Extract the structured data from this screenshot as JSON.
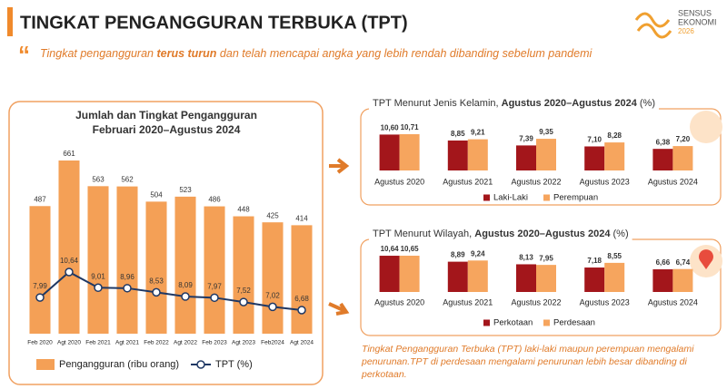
{
  "header": {
    "title": "TINGKAT PENGANGGURAN TERBUKA (TPT)",
    "quote": [
      "Tingkat pengangguran ",
      "terus turun",
      " dan telah mencapai angka yang lebih rendah dibanding sebelum pandemi"
    ]
  },
  "logo": [
    "SENSUS",
    "EKONOMI",
    "2026"
  ],
  "chart_data": [
    {
      "type": "bar",
      "title": [
        "Jumlah dan Tingkat Pengangguran",
        "Februari 2020–Agustus 2024"
      ],
      "categories": [
        "Feb 2020",
        "Agt 2020",
        "Feb 2021",
        "Agt 2021",
        "Feb 2022",
        "Agt 2022",
        "Feb 2023",
        "Agt 2023",
        "Feb2024",
        "Agt 2024"
      ],
      "series": [
        {
          "name": "Pengangguran (ribu orang)",
          "color": "#f4a056",
          "values": [
            487,
            661,
            563,
            562,
            504,
            523,
            486,
            448,
            425,
            414
          ]
        },
        {
          "name": "TPT (%)",
          "type": "line",
          "axis": "y2",
          "color": "#1f3864",
          "values": [
            7.99,
            10.64,
            9.01,
            8.96,
            8.53,
            8.09,
            7.97,
            7.52,
            7.02,
            6.68
          ],
          "value_labels": [
            "7,99",
            "10,64",
            "9,01",
            "8,96",
            "8,53",
            "8,09",
            "7,97",
            "7,52",
            "7,02",
            "6,68"
          ]
        }
      ]
    },
    {
      "type": "bar",
      "title": [
        "TPT Menurut Jenis Kelamin, ",
        "Agustus 2020–Agustus 2024",
        " (%)"
      ],
      "categories": [
        "Agustus 2020",
        "Agustus 2021",
        "Agustus 2022",
        "Agustus 2023",
        "Agustus 2024"
      ],
      "series": [
        {
          "name": "Laki-Laki",
          "color": "#a3161b",
          "values": [
            10.6,
            8.85,
            7.39,
            7.1,
            6.38
          ],
          "value_labels": [
            "10,60",
            "8,85",
            "7,39",
            "7,10",
            "6,38"
          ]
        },
        {
          "name": "Perempuan",
          "color": "#f6a55e",
          "values": [
            10.71,
            9.21,
            9.35,
            8.28,
            7.2
          ],
          "value_labels": [
            "10,71",
            "9,21",
            "9,35",
            "8,28",
            "7,20"
          ]
        }
      ]
    },
    {
      "type": "bar",
      "title": [
        "TPT Menurut Wilayah, ",
        "Agustus 2020–Agustus 2024",
        " (%)"
      ],
      "categories": [
        "Agustus 2020",
        "Agustus 2021",
        "Agustus 2022",
        "Agustus 2023",
        "Agustus 2024"
      ],
      "series": [
        {
          "name": "Perkotaan",
          "color": "#a3161b",
          "values": [
            10.64,
            8.89,
            8.13,
            7.18,
            6.66
          ],
          "value_labels": [
            "10,64",
            "8,89",
            "8,13",
            "7,18",
            "6,66"
          ]
        },
        {
          "name": "Perdesaan",
          "color": "#f6a55e",
          "values": [
            10.65,
            9.24,
            7.95,
            8.55,
            6.74
          ],
          "value_labels": [
            "10,65",
            "9,24",
            "7,95",
            "8,55",
            "6,74"
          ]
        }
      ]
    }
  ],
  "note": "Tingkat Pengangguran Terbuka (TPT) laki-laki maupun perempuan mengalami penurunan.TPT di perdesaan mengalami penurunan lebih besar dibanding di perkotaan."
}
